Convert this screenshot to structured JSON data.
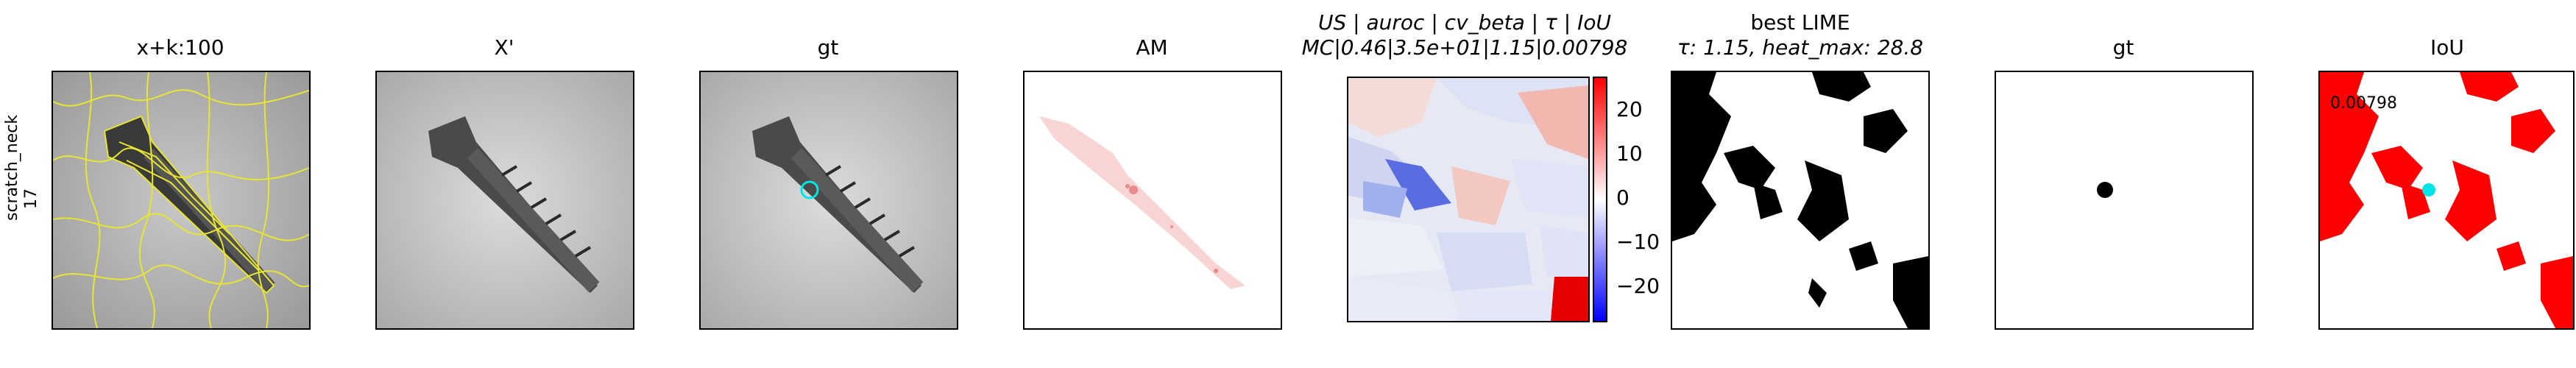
{
  "row_label": {
    "line1": "scratch_neck",
    "line2": "17"
  },
  "panels": {
    "p1": {
      "title": "x+k:100"
    },
    "p2": {
      "title": "X'"
    },
    "p3": {
      "title": "gt"
    },
    "p4": {
      "title": "AM"
    },
    "p5": {
      "title_line1": "US | auroc | cv_beta | τ | IoU",
      "title_line2": "MC|0.46|3.5e+01|1.15|0.00798"
    },
    "p6": {
      "title_line1": "best LIME",
      "title_line2": "τ: 1.15, heat_max: 28.8"
    },
    "p7": {
      "title": "gt"
    },
    "p8": {
      "title": "IoU",
      "value_label": "0.00798"
    }
  },
  "colorbar": {
    "ticks": [
      "20",
      "10",
      "0",
      "−10",
      "−20"
    ],
    "min": -28.8,
    "max": 28.8
  },
  "colors": {
    "contour": "#e6e632",
    "gt_circle": "#00e5e5",
    "iou_red": "#ff0000",
    "cyan": "#00e5e5"
  }
}
